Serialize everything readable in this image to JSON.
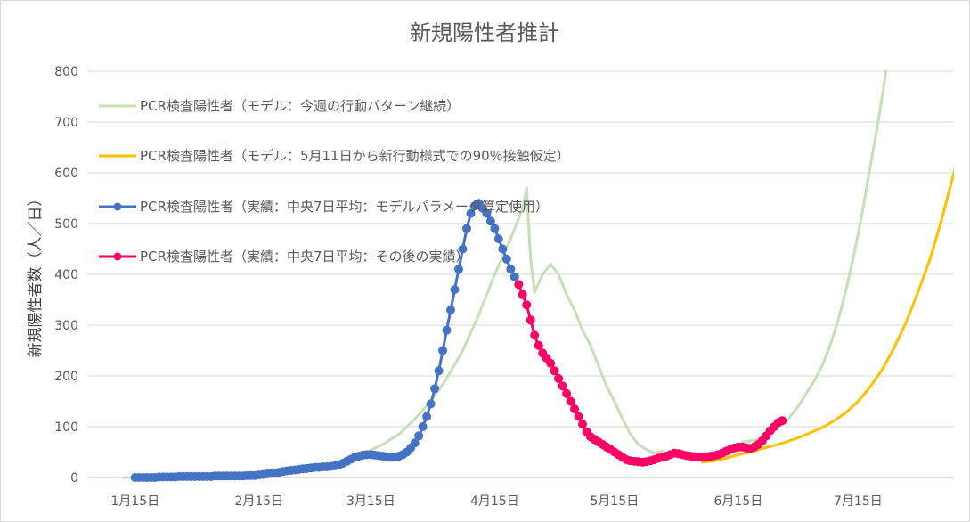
{
  "chart_data": {
    "type": "line",
    "title": "新規陽性者推計",
    "ylabel": "新規陽性者数（人／日）",
    "xlabel": "",
    "ylim": [
      0,
      800
    ],
    "yticks": [
      0,
      100,
      200,
      300,
      400,
      500,
      600,
      700,
      800
    ],
    "x_unit": "day_index_from_Jan15",
    "xlim": [
      -12,
      205
    ],
    "xticks": [
      {
        "label": "1月15日",
        "x": 0
      },
      {
        "label": "2月15日",
        "x": 31
      },
      {
        "label": "3月15日",
        "x": 59
      },
      {
        "label": "4月15日",
        "x": 90
      },
      {
        "label": "5月15日",
        "x": 120
      },
      {
        "label": "6月15日",
        "x": 151
      },
      {
        "label": "7月15日",
        "x": 181
      }
    ],
    "grid": true,
    "legend_position": "top-left",
    "series": [
      {
        "name": "PCR検査陽性者（モデル：今週の行動パターン継続）",
        "color": "#c5e0b4",
        "style": "line",
        "points": [
          [
            -3,
            0
          ],
          [
            10,
            1
          ],
          [
            25,
            3
          ],
          [
            35,
            6
          ],
          [
            45,
            15
          ],
          [
            50,
            25
          ],
          [
            54,
            35
          ],
          [
            58,
            50
          ],
          [
            62,
            65
          ],
          [
            66,
            85
          ],
          [
            70,
            115
          ],
          [
            74,
            150
          ],
          [
            78,
            195
          ],
          [
            82,
            250
          ],
          [
            86,
            320
          ],
          [
            90,
            400
          ],
          [
            94,
            470
          ],
          [
            97,
            530
          ],
          [
            98,
            570
          ],
          [
            99,
            430
          ],
          [
            100,
            365
          ],
          [
            102,
            400
          ],
          [
            104,
            420
          ],
          [
            106,
            400
          ],
          [
            108,
            360
          ],
          [
            110,
            330
          ],
          [
            112,
            290
          ],
          [
            114,
            260
          ],
          [
            116,
            220
          ],
          [
            118,
            180
          ],
          [
            120,
            150
          ],
          [
            122,
            115
          ],
          [
            124,
            85
          ],
          [
            126,
            65
          ],
          [
            128,
            55
          ],
          [
            130,
            48
          ],
          [
            132,
            52
          ],
          [
            134,
            45
          ],
          [
            136,
            42
          ],
          [
            138,
            40
          ],
          [
            140,
            40
          ],
          [
            142,
            42
          ],
          [
            144,
            40
          ],
          [
            146,
            38
          ],
          [
            148,
            40
          ],
          [
            150,
            55
          ],
          [
            152,
            70
          ],
          [
            154,
            72
          ],
          [
            156,
            75
          ],
          [
            158,
            85
          ],
          [
            160,
            95
          ],
          [
            162,
            105
          ],
          [
            164,
            120
          ],
          [
            166,
            140
          ],
          [
            168,
            165
          ],
          [
            170,
            190
          ],
          [
            172,
            220
          ],
          [
            174,
            260
          ],
          [
            176,
            310
          ],
          [
            178,
            370
          ],
          [
            180,
            440
          ],
          [
            182,
            520
          ],
          [
            184,
            610
          ],
          [
            186,
            700
          ],
          [
            188,
            800
          ]
        ]
      },
      {
        "name": "PCR検査陽性者（モデル：5月11日から新行動様式での90％接触仮定）",
        "color": "#ffc000",
        "style": "line",
        "points": [
          [
            142,
            30
          ],
          [
            145,
            33
          ],
          [
            148,
            38
          ],
          [
            151,
            45
          ],
          [
            154,
            50
          ],
          [
            157,
            57
          ],
          [
            160,
            63
          ],
          [
            163,
            70
          ],
          [
            166,
            78
          ],
          [
            169,
            88
          ],
          [
            172,
            98
          ],
          [
            175,
            112
          ],
          [
            178,
            128
          ],
          [
            181,
            150
          ],
          [
            184,
            178
          ],
          [
            187,
            212
          ],
          [
            190,
            255
          ],
          [
            193,
            305
          ],
          [
            196,
            365
          ],
          [
            199,
            430
          ],
          [
            202,
            510
          ],
          [
            205,
            600
          ],
          [
            208,
            680
          ],
          [
            210,
            730
          ]
        ]
      },
      {
        "name": "PCR検査陽性者（実績：中央7日平均：モデルパラメータ算定使用）",
        "color": "#4472c4",
        "style": "line-marker",
        "points": [
          [
            0,
            0
          ],
          [
            1,
            0
          ],
          [
            2,
            0
          ],
          [
            3,
            0
          ],
          [
            4,
            0
          ],
          [
            5,
            0
          ],
          [
            6,
            1
          ],
          [
            7,
            1
          ],
          [
            8,
            1
          ],
          [
            9,
            1
          ],
          [
            10,
            1
          ],
          [
            11,
            2
          ],
          [
            12,
            2
          ],
          [
            13,
            2
          ],
          [
            14,
            2
          ],
          [
            15,
            2
          ],
          [
            16,
            2
          ],
          [
            17,
            2
          ],
          [
            18,
            2
          ],
          [
            19,
            2
          ],
          [
            20,
            3
          ],
          [
            21,
            3
          ],
          [
            22,
            3
          ],
          [
            23,
            3
          ],
          [
            24,
            3
          ],
          [
            25,
            3
          ],
          [
            26,
            3
          ],
          [
            27,
            3
          ],
          [
            28,
            4
          ],
          [
            29,
            4
          ],
          [
            30,
            4
          ],
          [
            31,
            5
          ],
          [
            32,
            6
          ],
          [
            33,
            7
          ],
          [
            34,
            8
          ],
          [
            35,
            9
          ],
          [
            36,
            10
          ],
          [
            37,
            12
          ],
          [
            38,
            13
          ],
          [
            39,
            14
          ],
          [
            40,
            15
          ],
          [
            41,
            16
          ],
          [
            42,
            17
          ],
          [
            43,
            18
          ],
          [
            44,
            19
          ],
          [
            45,
            20
          ],
          [
            46,
            20
          ],
          [
            47,
            21
          ],
          [
            48,
            21
          ],
          [
            49,
            22
          ],
          [
            50,
            23
          ],
          [
            51,
            25
          ],
          [
            52,
            28
          ],
          [
            53,
            32
          ],
          [
            54,
            36
          ],
          [
            55,
            40
          ],
          [
            56,
            42
          ],
          [
            57,
            44
          ],
          [
            58,
            45
          ],
          [
            59,
            45
          ],
          [
            60,
            44
          ],
          [
            61,
            43
          ],
          [
            62,
            42
          ],
          [
            63,
            41
          ],
          [
            64,
            40
          ],
          [
            65,
            40
          ],
          [
            66,
            42
          ],
          [
            67,
            45
          ],
          [
            68,
            50
          ],
          [
            69,
            58
          ],
          [
            70,
            68
          ],
          [
            71,
            82
          ],
          [
            72,
            100
          ],
          [
            73,
            120
          ],
          [
            74,
            145
          ],
          [
            75,
            175
          ],
          [
            76,
            210
          ],
          [
            77,
            250
          ],
          [
            78,
            290
          ],
          [
            79,
            330
          ],
          [
            80,
            370
          ],
          [
            81,
            410
          ],
          [
            82,
            450
          ],
          [
            83,
            490
          ],
          [
            84,
            520
          ],
          [
            85,
            535
          ],
          [
            86,
            540
          ],
          [
            87,
            530
          ],
          [
            88,
            520
          ],
          [
            89,
            505
          ],
          [
            90,
            490
          ],
          [
            91,
            470
          ],
          [
            92,
            450
          ],
          [
            93,
            430
          ],
          [
            94,
            410
          ],
          [
            95,
            395
          ]
        ]
      },
      {
        "name": "PCR検査陽性者（実績：中央7日平均：その後の実績）",
        "color": "#ff0066",
        "style": "line-marker",
        "points": [
          [
            96,
            380
          ],
          [
            97,
            360
          ],
          [
            98,
            340
          ],
          [
            99,
            310
          ],
          [
            100,
            280
          ],
          [
            101,
            260
          ],
          [
            102,
            245
          ],
          [
            103,
            235
          ],
          [
            104,
            225
          ],
          [
            105,
            210
          ],
          [
            106,
            195
          ],
          [
            107,
            180
          ],
          [
            108,
            165
          ],
          [
            109,
            150
          ],
          [
            110,
            135
          ],
          [
            111,
            120
          ],
          [
            112,
            105
          ],
          [
            113,
            90
          ],
          [
            114,
            80
          ],
          [
            115,
            75
          ],
          [
            116,
            70
          ],
          [
            117,
            65
          ],
          [
            118,
            60
          ],
          [
            119,
            55
          ],
          [
            120,
            50
          ],
          [
            121,
            45
          ],
          [
            122,
            40
          ],
          [
            123,
            35
          ],
          [
            124,
            33
          ],
          [
            125,
            32
          ],
          [
            126,
            31
          ],
          [
            127,
            30
          ],
          [
            128,
            31
          ],
          [
            129,
            33
          ],
          [
            130,
            35
          ],
          [
            131,
            38
          ],
          [
            132,
            40
          ],
          [
            133,
            42
          ],
          [
            134,
            45
          ],
          [
            135,
            48
          ],
          [
            136,
            47
          ],
          [
            137,
            45
          ],
          [
            138,
            43
          ],
          [
            139,
            42
          ],
          [
            140,
            41
          ],
          [
            141,
            40
          ],
          [
            142,
            40
          ],
          [
            143,
            41
          ],
          [
            144,
            42
          ],
          [
            145,
            43
          ],
          [
            146,
            45
          ],
          [
            147,
            48
          ],
          [
            148,
            52
          ],
          [
            149,
            55
          ],
          [
            150,
            58
          ],
          [
            151,
            60
          ],
          [
            152,
            60
          ],
          [
            153,
            58
          ],
          [
            154,
            57
          ],
          [
            155,
            60
          ],
          [
            156,
            65
          ],
          [
            157,
            72
          ],
          [
            158,
            82
          ],
          [
            159,
            92
          ],
          [
            160,
            100
          ],
          [
            161,
            108
          ],
          [
            162,
            112
          ]
        ]
      }
    ]
  }
}
